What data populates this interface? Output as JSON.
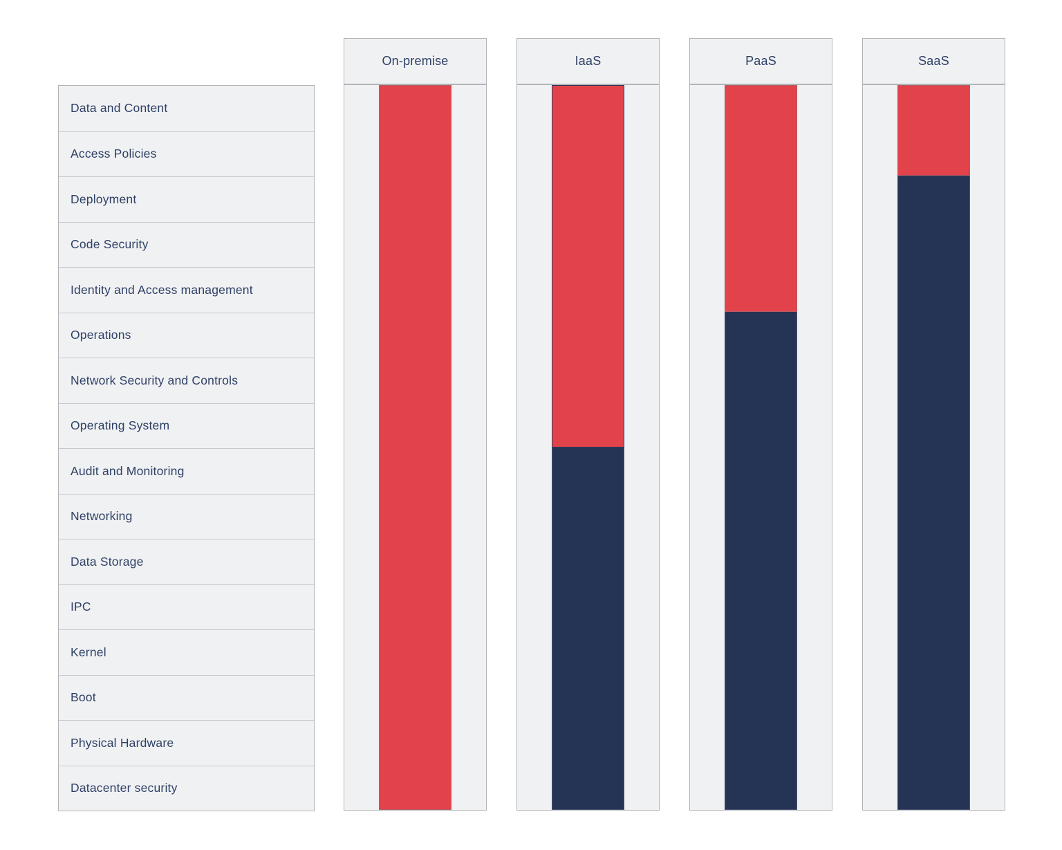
{
  "diagram": {
    "layers": [
      "Data and Content",
      "Access Policies",
      "Deployment",
      "Code Security",
      "Identity and Access management",
      "Operations",
      "Network Security and Controls",
      "Operating System",
      "Audit and Monitoring",
      "Networking",
      "Data Storage",
      "IPC",
      "Kernel",
      "Boot",
      "Physical Hardware",
      "Datacenter security"
    ],
    "columns": [
      {
        "label": "On-premise",
        "red_rows": 16,
        "outlined": false
      },
      {
        "label": "IaaS",
        "red_rows": 8,
        "outlined": true
      },
      {
        "label": "PaaS",
        "red_rows": 5,
        "outlined": false
      },
      {
        "label": "SaaS",
        "red_rows": 2,
        "outlined": false
      }
    ],
    "colors": {
      "red": "#e2424a",
      "navy": "#253355",
      "panel_bg": "#f0f1f3",
      "panel_border": "#b2b4b8",
      "row_divider": "#c6c8cb",
      "text": "#2e4065",
      "iaas_outline": "#2a3a5c"
    }
  }
}
